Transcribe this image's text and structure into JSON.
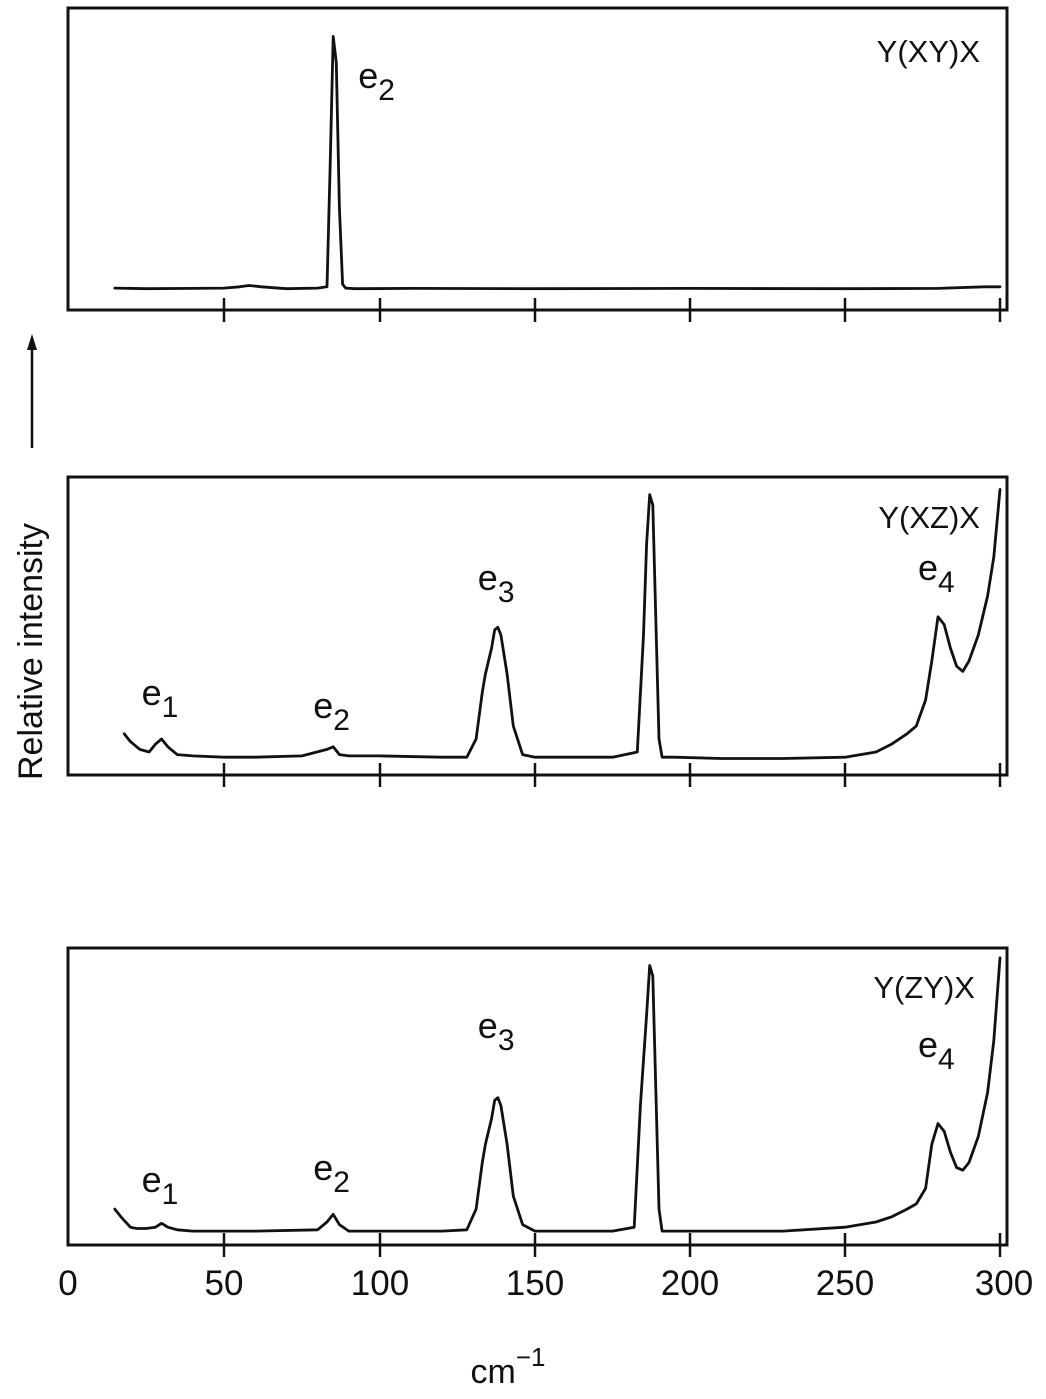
{
  "chart_data": [
    {
      "type": "line",
      "panel_label": "Y(XY)X",
      "xlim": [
        0,
        300
      ],
      "ylim": [
        0,
        1.1
      ],
      "x_ticks": [
        0,
        50,
        100,
        150,
        200,
        250,
        300
      ],
      "tick_labels_shown": false,
      "series": [
        {
          "x": [
            15,
            25,
            40,
            50,
            55,
            58,
            62,
            70,
            80,
            83,
            84,
            85,
            86,
            87,
            88,
            89,
            92,
            110,
            150,
            200,
            250,
            280,
            295,
            300
          ],
          "y": [
            0.045,
            0.043,
            0.044,
            0.045,
            0.05,
            0.055,
            0.05,
            0.043,
            0.045,
            0.05,
            0.5,
            1.0,
            0.9,
            0.35,
            0.06,
            0.045,
            0.043,
            0.044,
            0.043,
            0.044,
            0.043,
            0.044,
            0.05,
            0.05
          ]
        }
      ],
      "peak_labels": [
        {
          "base": "e",
          "sub": "2",
          "x": 85
        }
      ]
    },
    {
      "type": "line",
      "panel_label": "Y(XZ)X",
      "xlim": [
        0,
        300
      ],
      "ylim": [
        0,
        1.1
      ],
      "x_ticks": [
        0,
        50,
        100,
        150,
        200,
        250,
        300
      ],
      "tick_labels_shown": false,
      "series": [
        {
          "x": [
            18,
            20,
            23,
            26,
            28,
            30,
            32,
            35,
            40,
            50,
            60,
            75,
            83,
            85,
            87,
            90,
            100,
            120,
            128,
            131,
            133,
            134,
            136,
            137,
            138,
            139,
            141,
            143,
            146,
            150,
            160,
            175,
            183,
            185,
            186,
            187,
            188,
            189,
            190,
            191,
            195,
            210,
            230,
            250,
            255,
            260,
            265,
            270,
            273,
            276,
            278,
            280,
            282,
            284,
            286,
            288,
            290,
            293,
            296,
            298,
            300
          ],
          "y": [
            0.12,
            0.09,
            0.06,
            0.05,
            0.08,
            0.1,
            0.07,
            0.04,
            0.035,
            0.03,
            0.03,
            0.035,
            0.06,
            0.07,
            0.04,
            0.035,
            0.035,
            0.03,
            0.03,
            0.1,
            0.28,
            0.35,
            0.45,
            0.52,
            0.53,
            0.5,
            0.35,
            0.15,
            0.04,
            0.03,
            0.03,
            0.03,
            0.05,
            0.5,
            0.85,
            1.04,
            1.0,
            0.55,
            0.1,
            0.03,
            0.03,
            0.025,
            0.025,
            0.03,
            0.04,
            0.05,
            0.08,
            0.12,
            0.15,
            0.25,
            0.4,
            0.57,
            0.54,
            0.45,
            0.38,
            0.36,
            0.4,
            0.5,
            0.65,
            0.8,
            1.06
          ]
        }
      ],
      "peak_labels": [
        {
          "base": "e",
          "sub": "1",
          "x": 30
        },
        {
          "base": "e",
          "sub": "2",
          "x": 85
        },
        {
          "base": "e",
          "sub": "3",
          "x": 138
        },
        {
          "base": "e",
          "sub": "4",
          "x": 280
        }
      ]
    },
    {
      "type": "line",
      "panel_label": "Y(ZY)X",
      "xlim": [
        0,
        300
      ],
      "ylim": [
        0,
        1.1
      ],
      "x_ticks": [
        0,
        50,
        100,
        150,
        200,
        250,
        300
      ],
      "tick_labels_shown": true,
      "series": [
        {
          "x": [
            15,
            17,
            20,
            22,
            25,
            28,
            30,
            32,
            35,
            40,
            60,
            80,
            83,
            85,
            87,
            90,
            100,
            120,
            128,
            131,
            133,
            134,
            136,
            137,
            138,
            139,
            141,
            143,
            146,
            150,
            160,
            175,
            182,
            184,
            186,
            187,
            188,
            189,
            190,
            191,
            195,
            210,
            230,
            250,
            255,
            260,
            265,
            270,
            273,
            276,
            278,
            280,
            282,
            284,
            286,
            288,
            290,
            293,
            296,
            298,
            300
          ],
          "y": [
            0.1,
            0.07,
            0.03,
            0.025,
            0.025,
            0.03,
            0.045,
            0.03,
            0.02,
            0.015,
            0.015,
            0.02,
            0.05,
            0.08,
            0.04,
            0.015,
            0.015,
            0.015,
            0.02,
            0.1,
            0.28,
            0.35,
            0.45,
            0.52,
            0.53,
            0.5,
            0.35,
            0.15,
            0.04,
            0.015,
            0.015,
            0.015,
            0.03,
            0.5,
            0.85,
            1.04,
            1.0,
            0.55,
            0.1,
            0.015,
            0.015,
            0.015,
            0.015,
            0.03,
            0.04,
            0.05,
            0.07,
            0.1,
            0.12,
            0.18,
            0.35,
            0.43,
            0.4,
            0.32,
            0.26,
            0.25,
            0.28,
            0.38,
            0.55,
            0.75,
            1.07
          ]
        }
      ],
      "peak_labels": [
        {
          "base": "e",
          "sub": "1",
          "x": 30
        },
        {
          "base": "e",
          "sub": "2",
          "x": 85
        },
        {
          "base": "e",
          "sub": "3",
          "x": 138
        },
        {
          "base": "e",
          "sub": "4",
          "x": 280
        }
      ]
    }
  ],
  "tick_labels": [
    "0",
    "50",
    "100",
    "150",
    "200",
    "250",
    "300"
  ],
  "xlabel": {
    "base": "cm",
    "sup": "−1"
  },
  "ylabel": "Relative  intensity"
}
